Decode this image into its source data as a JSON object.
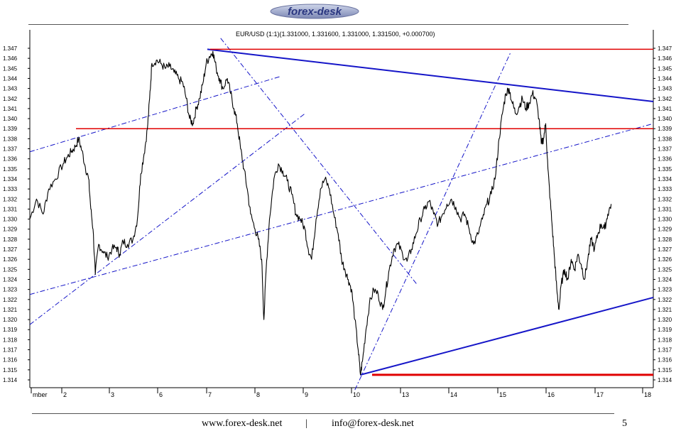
{
  "logo": {
    "text": "forex-desk"
  },
  "chart_data": {
    "type": "line",
    "title": "EUR/USD (1:1)(1.331000, 1.331600, 1.331000, 1.331500, +0.000700)",
    "ylim": [
      1.3135,
      1.3475
    ],
    "y_ticks": [
      "1.347",
      "1.346",
      "1.345",
      "1.344",
      "1.343",
      "1.342",
      "1.341",
      "1.340",
      "1.339",
      "1.338",
      "1.337",
      "1.336",
      "1.335",
      "1.334",
      "1.333",
      "1.332",
      "1.331",
      "1.330",
      "1.329",
      "1.328",
      "1.327",
      "1.326",
      "1.325",
      "1.324",
      "1.323",
      "1.322",
      "1.321",
      "1.320",
      "1.319",
      "1.318",
      "1.317",
      "1.316",
      "1.315",
      "1.314"
    ],
    "x_ticks": [
      "mber",
      "2",
      "3",
      "6",
      "7",
      "8",
      "9",
      "10",
      "13",
      "14",
      "15",
      "16",
      "17",
      "18"
    ],
    "series": [
      {
        "values": [
          [
            0.0,
            1.33
          ],
          [
            0.6,
            1.332
          ],
          [
            1.2,
            1.3305
          ],
          [
            1.7,
            1.333
          ],
          [
            2.3,
            1.334
          ],
          [
            3.0,
            1.3355
          ],
          [
            3.4,
            1.3362
          ],
          [
            3.8,
            1.3368
          ],
          [
            4.1,
            1.3372
          ],
          [
            4.4,
            1.338
          ],
          [
            4.7,
            1.3368
          ],
          [
            5.0,
            1.3352
          ],
          [
            5.3,
            1.334
          ],
          [
            5.5,
            1.331
          ],
          [
            5.7,
            1.329
          ],
          [
            5.9,
            1.3245
          ],
          [
            6.2,
            1.3275
          ],
          [
            6.6,
            1.3268
          ],
          [
            7.0,
            1.3262
          ],
          [
            7.4,
            1.327
          ],
          [
            7.8,
            1.3272
          ],
          [
            8.1,
            1.3265
          ],
          [
            8.4,
            1.3278
          ],
          [
            8.8,
            1.3275
          ],
          [
            9.3,
            1.328
          ],
          [
            9.7,
            1.33
          ],
          [
            10.0,
            1.3345
          ],
          [
            10.3,
            1.3365
          ],
          [
            10.6,
            1.339
          ],
          [
            10.8,
            1.342
          ],
          [
            11.0,
            1.3455
          ],
          [
            11.4,
            1.3458
          ],
          [
            11.8,
            1.3455
          ],
          [
            12.2,
            1.345
          ],
          [
            12.6,
            1.3452
          ],
          [
            13.0,
            1.3446
          ],
          [
            13.4,
            1.344
          ],
          [
            13.8,
            1.3435
          ],
          [
            14.1,
            1.342
          ],
          [
            14.4,
            1.34
          ],
          [
            14.7,
            1.3395
          ],
          [
            15.0,
            1.341
          ],
          [
            15.3,
            1.342
          ],
          [
            15.6,
            1.3435
          ],
          [
            15.9,
            1.3455
          ],
          [
            16.2,
            1.3462
          ],
          [
            16.5,
            1.3467
          ],
          [
            16.8,
            1.345
          ],
          [
            17.1,
            1.344
          ],
          [
            17.4,
            1.343
          ],
          [
            17.8,
            1.344
          ],
          [
            18.1,
            1.3425
          ],
          [
            18.4,
            1.341
          ],
          [
            18.7,
            1.3395
          ],
          [
            19.0,
            1.337
          ],
          [
            19.3,
            1.335
          ],
          [
            19.6,
            1.333
          ],
          [
            19.9,
            1.3305
          ],
          [
            20.3,
            1.329
          ],
          [
            20.6,
            1.328
          ],
          [
            20.9,
            1.326
          ],
          [
            21.1,
            1.32
          ],
          [
            21.3,
            1.325
          ],
          [
            21.6,
            1.33
          ],
          [
            22.0,
            1.334
          ],
          [
            22.4,
            1.3355
          ],
          [
            22.8,
            1.3348
          ],
          [
            23.2,
            1.3338
          ],
          [
            23.6,
            1.3325
          ],
          [
            24.0,
            1.3305
          ],
          [
            24.4,
            1.33
          ],
          [
            24.8,
            1.329
          ],
          [
            25.1,
            1.327
          ],
          [
            25.4,
            1.326
          ],
          [
            25.8,
            1.33
          ],
          [
            26.2,
            1.333
          ],
          [
            26.6,
            1.334
          ],
          [
            27.0,
            1.333
          ],
          [
            27.4,
            1.3305
          ],
          [
            27.8,
            1.3285
          ],
          [
            28.1,
            1.326
          ],
          [
            28.4,
            1.325
          ],
          [
            28.7,
            1.324
          ],
          [
            29.0,
            1.323
          ],
          [
            29.3,
            1.32
          ],
          [
            29.6,
            1.317
          ],
          [
            29.8,
            1.3145
          ],
          [
            30.0,
            1.316
          ],
          [
            30.3,
            1.319
          ],
          [
            30.6,
            1.3215
          ],
          [
            31.0,
            1.323
          ],
          [
            31.4,
            1.3225
          ],
          [
            31.8,
            1.321
          ],
          [
            32.1,
            1.323
          ],
          [
            32.4,
            1.325
          ],
          [
            32.8,
            1.327
          ],
          [
            33.2,
            1.3275
          ],
          [
            33.6,
            1.3265
          ],
          [
            34.0,
            1.3258
          ],
          [
            34.4,
            1.327
          ],
          [
            34.8,
            1.3285
          ],
          [
            35.2,
            1.33
          ],
          [
            35.6,
            1.331
          ],
          [
            36.0,
            1.3318
          ],
          [
            36.4,
            1.3305
          ],
          [
            36.8,
            1.3295
          ],
          [
            37.2,
            1.3305
          ],
          [
            37.6,
            1.3315
          ],
          [
            38.0,
            1.332
          ],
          [
            38.4,
            1.3312
          ],
          [
            38.8,
            1.33
          ],
          [
            39.2,
            1.3305
          ],
          [
            39.6,
            1.329
          ],
          [
            40.0,
            1.3275
          ],
          [
            40.4,
            1.3285
          ],
          [
            40.8,
            1.33
          ],
          [
            41.2,
            1.3315
          ],
          [
            41.6,
            1.3325
          ],
          [
            42.0,
            1.3345
          ],
          [
            42.3,
            1.338
          ],
          [
            42.6,
            1.3405
          ],
          [
            42.9,
            1.3425
          ],
          [
            43.2,
            1.343
          ],
          [
            43.5,
            1.3415
          ],
          [
            43.8,
            1.3405
          ],
          [
            44.1,
            1.3412
          ],
          [
            44.4,
            1.342
          ],
          [
            44.7,
            1.341
          ],
          [
            45.0,
            1.3415
          ],
          [
            45.3,
            1.3425
          ],
          [
            45.6,
            1.342
          ],
          [
            45.9,
            1.34
          ],
          [
            46.1,
            1.3375
          ],
          [
            46.3,
            1.338
          ],
          [
            46.5,
            1.3395
          ],
          [
            46.7,
            1.335
          ],
          [
            46.9,
            1.332
          ],
          [
            47.1,
            1.329
          ],
          [
            47.3,
            1.326
          ],
          [
            47.5,
            1.323
          ],
          [
            47.7,
            1.321
          ],
          [
            47.9,
            1.3235
          ],
          [
            48.2,
            1.325
          ],
          [
            48.5,
            1.324
          ],
          [
            48.8,
            1.326
          ],
          [
            49.1,
            1.325
          ],
          [
            49.4,
            1.3265
          ],
          [
            49.7,
            1.3255
          ],
          [
            50.0,
            1.324
          ],
          [
            50.3,
            1.326
          ],
          [
            50.6,
            1.328
          ],
          [
            50.9,
            1.327
          ],
          [
            51.2,
            1.3285
          ],
          [
            51.5,
            1.3295
          ],
          [
            51.8,
            1.329
          ],
          [
            52.1,
            1.3305
          ],
          [
            52.4,
            1.3315
          ]
        ]
      }
    ],
    "hlines": [
      1.3469,
      1.339,
      1.3145
    ],
    "trendlines": [
      {
        "style": "solid",
        "color": "#1515c8",
        "points": [
          [
            16.0,
            1.3469
          ],
          [
            56.2,
            1.3417
          ]
        ]
      },
      {
        "style": "solid",
        "color": "#1515c8",
        "points": [
          [
            29.8,
            1.3145
          ],
          [
            56.2,
            1.3222
          ]
        ]
      },
      {
        "style": "dashed",
        "color": "#1515c8",
        "points": [
          [
            0.0,
            1.3225
          ],
          [
            56.2,
            1.3395
          ]
        ]
      },
      {
        "style": "dashed",
        "color": "#1515c8",
        "points": [
          [
            0.0,
            1.3367
          ],
          [
            22.6,
            1.3442
          ]
        ]
      },
      {
        "style": "dashed",
        "color": "#1515c8",
        "points": [
          [
            0.0,
            1.3195
          ],
          [
            24.8,
            1.3405
          ]
        ]
      },
      {
        "style": "dashed",
        "color": "#1515c8",
        "points": [
          [
            17.2,
            1.348
          ],
          [
            34.9,
            1.3235
          ]
        ]
      },
      {
        "style": "dashed",
        "color": "#1515c8",
        "points": [
          [
            29.3,
            1.313
          ],
          [
            43.3,
            1.3465
          ]
        ]
      }
    ],
    "colors": {
      "price": "#000000",
      "resistance": "#e00000",
      "trend": "#1515c8",
      "axis": "#000000"
    }
  },
  "footer": {
    "website": "www.forex-desk.net",
    "separator": "|",
    "email": "info@forex-desk.net",
    "page_number": "5"
  }
}
